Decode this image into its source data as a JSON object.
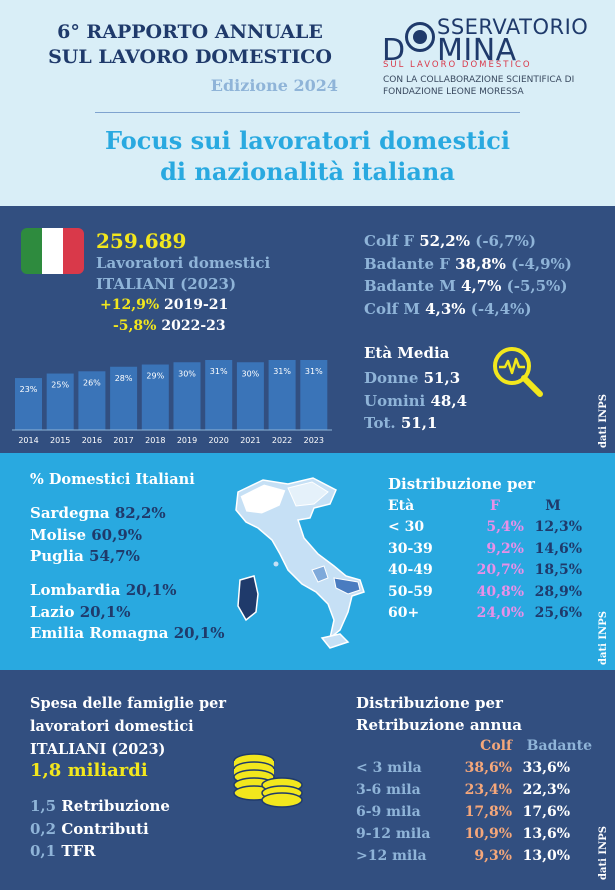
{
  "header": {
    "title_line1": "6° RAPPORTO ANNUALE",
    "title_line2": "SUL LAVORO DOMESTICO",
    "edition": "Edizione 2024",
    "logo_line1": "SSERVATORIO",
    "logo_big_o": "O",
    "logo_d": "D",
    "logo_mina": "MINA",
    "logo_tagline": "SUL LAVORO DOMESTICO",
    "collab_line1": "CON LA COLLABORAZIONE SCIENTIFICA DI",
    "collab_line2": "FONDAZIONE LEONE MORESSA",
    "focus_line1": "Focus sui lavoratori domestici",
    "focus_line2": "di nazionalità italiana"
  },
  "overview": {
    "total": "259.689",
    "label_line1": "Lavoratori domestici",
    "label_line2": "ITALIANI (2023)",
    "delta1_value": "+12,9%",
    "delta1_period": "2019-21",
    "delta2_value": "-5,8%",
    "delta2_period": "2022-23",
    "roles": [
      {
        "label": "Colf F",
        "value": "52,2%",
        "change": "(-6,7%)"
      },
      {
        "label": "Badante F",
        "value": "38,8%",
        "change": "(-4,9%)"
      },
      {
        "label": "Badante M",
        "value": "4,7%",
        "change": "(-5,5%)"
      },
      {
        "label": "Colf M",
        "value": "4,3%",
        "change": "(-4,4%)"
      }
    ],
    "age_title": "Età Media",
    "ages": [
      {
        "label": "Donne",
        "value": "51,3"
      },
      {
        "label": "Uomini",
        "value": "48,4"
      },
      {
        "label": "Tot.",
        "value": "51,1"
      }
    ],
    "source_note": "dati INPS"
  },
  "chart_data": {
    "type": "bar",
    "categories": [
      "2014",
      "2015",
      "2016",
      "2017",
      "2018",
      "2019",
      "2020",
      "2021",
      "2022",
      "2023"
    ],
    "values": [
      23,
      25,
      26,
      28,
      29,
      30,
      31,
      30,
      31,
      31
    ],
    "value_labels": [
      "23%",
      "25%",
      "26%",
      "28%",
      "29%",
      "30%",
      "31%",
      "30%",
      "31%",
      "31%"
    ],
    "title": "",
    "xlabel": "",
    "ylabel": "",
    "ylim": [
      0,
      31
    ],
    "color": "#3a74b8"
  },
  "regions": {
    "title": "% Domestici Italiani",
    "top": [
      {
        "name": "Sardegna",
        "value": "82,2%"
      },
      {
        "name": "Molise",
        "value": "60,9%"
      },
      {
        "name": "Puglia",
        "value": "54,7%"
      }
    ],
    "bottom": [
      {
        "name": "Lombardia",
        "value": "20,1%"
      },
      {
        "name": "Lazio",
        "value": "20,1%"
      },
      {
        "name": "Emilia Romagna",
        "value": "20,1%"
      }
    ],
    "source_note": "dati INPS"
  },
  "age_distribution": {
    "title_line1": "Distribuzione per",
    "header": [
      "Età",
      "F",
      "M"
    ],
    "rows": [
      [
        "< 30",
        "5,4%",
        "12,3%"
      ],
      [
        "30-39",
        "9,2%",
        "14,6%"
      ],
      [
        "40-49",
        "20,7%",
        "18,5%"
      ],
      [
        "50-59",
        "40,8%",
        "28,9%"
      ],
      [
        "60+",
        "24,0%",
        "25,6%"
      ]
    ]
  },
  "spending": {
    "title_line1": "Spesa delle famiglie per",
    "title_line2": "lavoratori domestici",
    "title_line3": "ITALIANI (2023)",
    "total": "1,8 miliardi",
    "items": [
      {
        "value": "1,5",
        "label": "Retribuzione"
      },
      {
        "value": "0,2",
        "label": "Contributi"
      },
      {
        "value": "0,1",
        "label": "TFR"
      }
    ],
    "source_note": "dati INPS"
  },
  "salary_distribution": {
    "title_line1": "Distribuzione per",
    "title_line2": "Retribuzione annua",
    "header": [
      "",
      "Colf",
      "Badante"
    ],
    "rows": [
      [
        "< 3 mila",
        "38,6%",
        "33,6%"
      ],
      [
        "3-6 mila",
        "23,4%",
        "22,3%"
      ],
      [
        "6-9 mila",
        "17,8%",
        "17,6%"
      ],
      [
        "9-12 mila",
        "10,9%",
        "13,6%"
      ],
      [
        ">12 mila",
        "9,3%",
        "13,0%"
      ]
    ]
  },
  "colors": {
    "navy": "#324f80",
    "sky": "#29a9e0",
    "header_bg": "#d9eef7",
    "yellow": "#f2e71d",
    "pink": "#e890e8",
    "light_blue_text": "#8fb4d8",
    "peach": "#f5a77a"
  }
}
